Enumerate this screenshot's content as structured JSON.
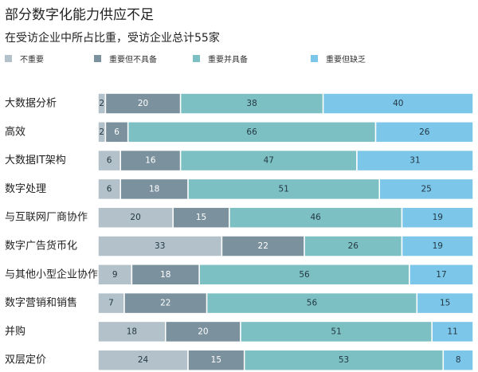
{
  "title": "部分数字化能力供应不足",
  "subtitle": "在受访企业中所占比重，受访企业总计55家",
  "colors": {
    "series": [
      "#b3c1ca",
      "#7b919e",
      "#7dc0c4",
      "#7cc6ea"
    ],
    "label_light": "#ffffff",
    "label_dark": "#243944",
    "separator": "#ffffff",
    "category_text": "#222222"
  },
  "chart_data": {
    "type": "bar",
    "orientation": "horizontal",
    "stacked": true,
    "title": "部分数字化能力供应不足",
    "subtitle": "在受访企业中所占比重，受访企业总计55家",
    "xlim": [
      0,
      100
    ],
    "grid": false,
    "legend_position": "top",
    "categories": [
      "大数据分析",
      "高效",
      "大数据IT架构",
      "数字处理",
      "与互联网厂商协作",
      "数字广告货币化",
      "与其他小型企业协作",
      "数字营销和销售",
      "并购",
      "双层定价"
    ],
    "series": [
      {
        "name": "不重要",
        "values": [
          2,
          2,
          6,
          6,
          20,
          33,
          9,
          7,
          18,
          24
        ]
      },
      {
        "name": "重要但不具备",
        "values": [
          20,
          6,
          16,
          18,
          15,
          22,
          18,
          22,
          20,
          15
        ]
      },
      {
        "name": "重要并具备",
        "values": [
          38,
          66,
          47,
          51,
          46,
          26,
          56,
          56,
          51,
          53
        ]
      },
      {
        "name": "重要但缺乏",
        "values": [
          40,
          26,
          31,
          25,
          19,
          19,
          17,
          15,
          11,
          8
        ]
      }
    ]
  }
}
